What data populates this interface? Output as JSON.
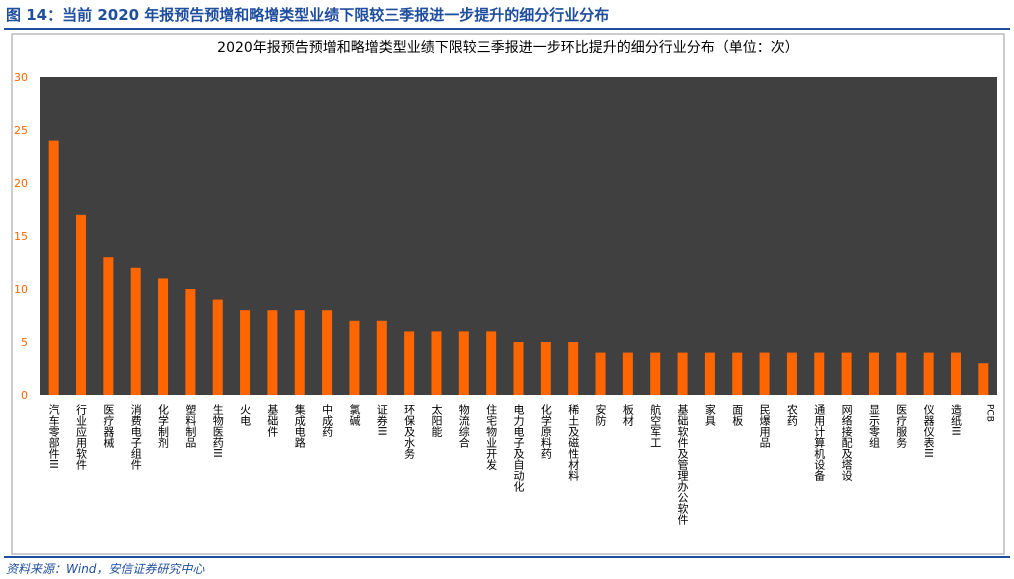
{
  "figure": {
    "title": "图 14：当前 2020 年报预告预增和略增类型业绩下限较三季报进一步提升的细分行业分布",
    "source": "资料来源：Wind，安信证券研究中心"
  },
  "colors": {
    "plot_bg": "#404040",
    "bar": "#ff6600",
    "accent": "#1f4e9e",
    "tick_text": "#ff6600"
  },
  "chart_data": {
    "type": "bar",
    "title": "2020年报预告预增和略增类型业绩下限较三季报进一步环比提升的细分行业分布（单位：次）",
    "xlabel": "",
    "ylabel": "",
    "ylim": [
      0,
      30
    ],
    "yticks": [
      0,
      5,
      10,
      15,
      20,
      25,
      30
    ],
    "grid": false,
    "legend": "none",
    "categories": [
      "汽车零部件III",
      "行业应用软件",
      "医疗器械",
      "消费电子组件",
      "化学制剂",
      "塑料制品",
      "生物医药III",
      "火电",
      "基础件",
      "集成电路",
      "中成药",
      "氯碱",
      "证券III",
      "环保及水务",
      "太阳能",
      "物流综合",
      "住宅物业开发",
      "电力电子及自动化",
      "化学原料药",
      "稀土及磁性材料",
      "安防",
      "板材",
      "航空军工",
      "基础软件及管理办公软件",
      "家具",
      "面板",
      "民爆用品",
      "农药",
      "通用计算机设备",
      "网络接配及塔设",
      "显示零组",
      "医疗服务",
      "仪器仪表III",
      "造纸III",
      "PCB"
    ],
    "values": [
      24,
      17,
      13,
      12,
      11,
      10,
      9,
      8,
      8,
      8,
      8,
      7,
      7,
      6,
      6,
      6,
      6,
      5,
      5,
      5,
      4,
      4,
      4,
      4,
      4,
      4,
      4,
      4,
      4,
      4,
      4,
      4,
      4,
      4,
      3
    ]
  }
}
